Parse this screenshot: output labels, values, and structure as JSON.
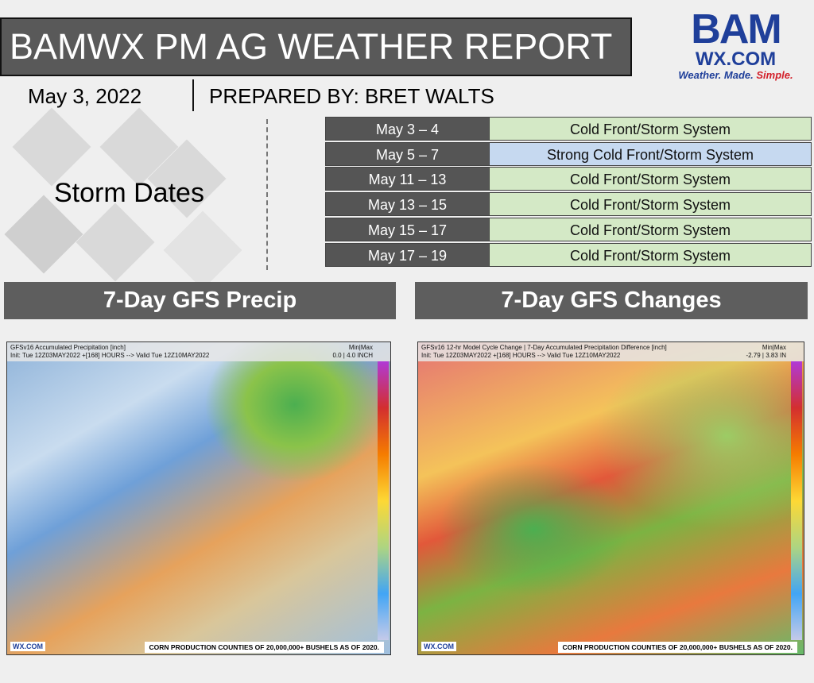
{
  "header": {
    "title": "BAMWX PM AG WEATHER REPORT",
    "date": "May 3, 2022",
    "prepared_by": "PREPARED BY: BRET WALTS"
  },
  "logo": {
    "brand": "BAM",
    "site": "WX.COM",
    "tagline": [
      "Weather.",
      "Made.",
      "Simple."
    ]
  },
  "storm_dates": {
    "label": "Storm Dates",
    "rows": [
      [
        "May 3 – 4",
        "Cold Front/Storm System"
      ],
      [
        "May 5 – 7",
        "Strong Cold Front/Storm System"
      ],
      [
        "May 11 – 13",
        "Cold Front/Storm System"
      ],
      [
        "May 13 – 15",
        "Cold Front/Storm System"
      ],
      [
        "May 15 – 17",
        "Cold Front/Storm System"
      ],
      [
        "May 17 – 19",
        "Cold Front/Storm System"
      ]
    ]
  },
  "panels": [
    {
      "title": "7-Day GFS Precip",
      "map_title": "GFSv16 Accumulated Precipitation [inch]",
      "map_init": "Init: Tue 12Z03MAY2022 +[168] HOURS --> Valid Tue 12Z10MAY2022",
      "range_label": "Min|Max",
      "range": "0.0 | 4.0 INCH",
      "footer": "CORN PRODUCTION COUNTIES OF 20,000,000+ BUSHELS AS OF 2020.",
      "logo": "WX.COM"
    },
    {
      "title": "7-Day GFS Changes",
      "map_title": "GFSv16 12-hr Model Cycle Change | 7-Day Accumulated Precipitation Difference [inch]",
      "map_init": "Init: Tue 12Z03MAY2022 +[168] HOURS --> Valid Tue 12Z10MAY2022",
      "range_label": "Min|Max",
      "range": "-2.79 | 3.83 IN",
      "footer": "CORN PRODUCTION COUNTIES OF 20,000,000+ BUSHELS AS OF 2020.",
      "logo": "WX.COM"
    }
  ]
}
